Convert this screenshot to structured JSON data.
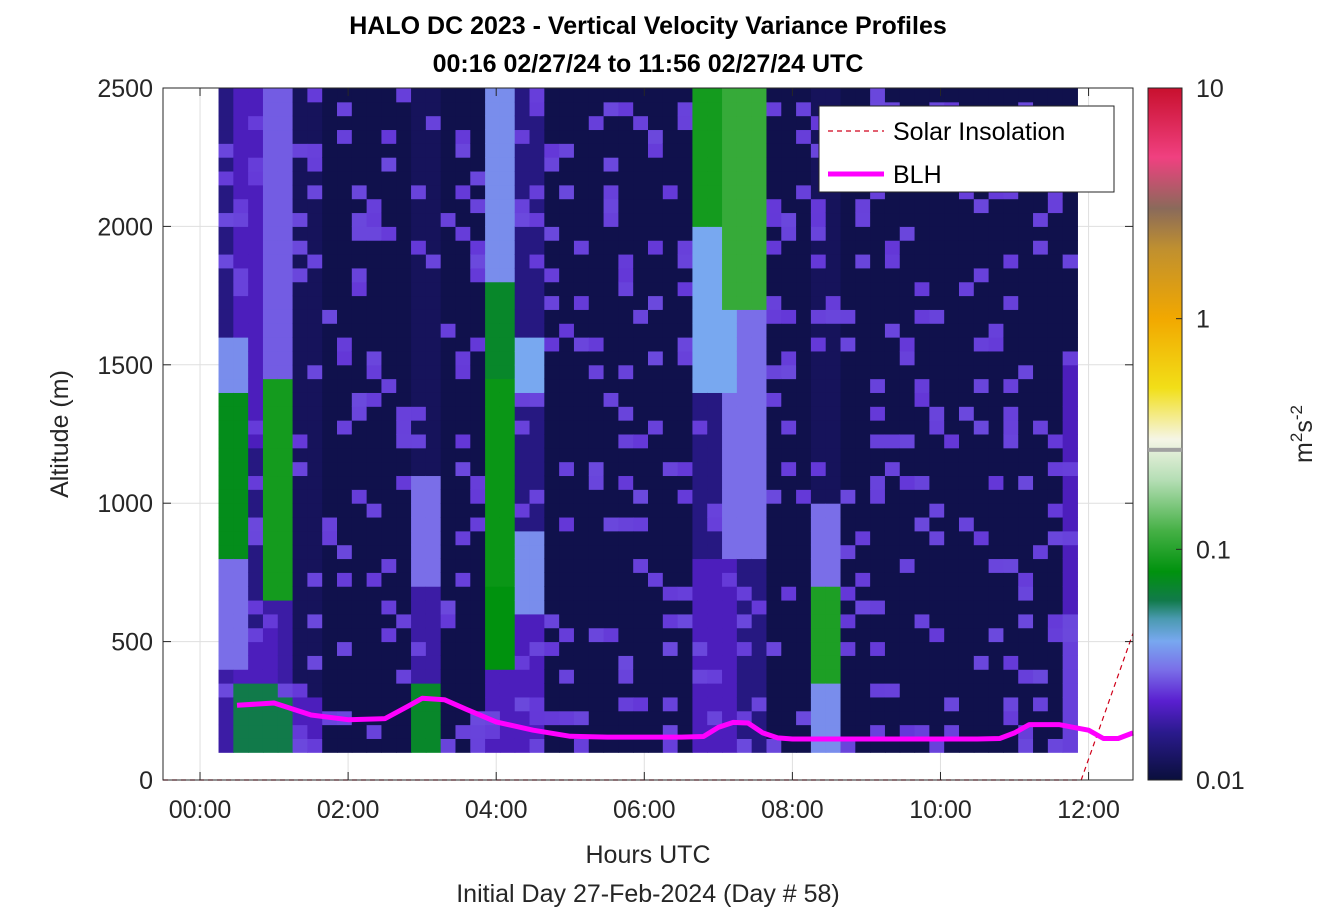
{
  "chart_data": {
    "type": "heatmap",
    "title": "HALO DC 2023 - Vertical Velocity Variance Profiles",
    "subtitle": "00:16 02/27/24 to 11:56 02/27/24  UTC",
    "xlabel": "Hours UTC",
    "xlabel2": "Initial Day 27-Feb-2024 (Day # 58)",
    "ylabel": "Altitude (m)",
    "x_unit": "hours UTC",
    "xlim": [
      -0.5,
      12.6
    ],
    "ylim": [
      0,
      2500
    ],
    "x_ticks": [
      0,
      2,
      4,
      6,
      8,
      10,
      12
    ],
    "x_tick_labels": [
      "00:00",
      "02:00",
      "04:00",
      "06:00",
      "08:00",
      "10:00",
      "12:00"
    ],
    "y_ticks": [
      0,
      500,
      1000,
      1500,
      2000,
      2500
    ],
    "y_tick_labels": [
      "0",
      "500",
      "1000",
      "1500",
      "2000",
      "2500"
    ],
    "grid": true,
    "colorbar": {
      "scale": "log",
      "range": [
        0.01,
        10
      ],
      "ticks": [
        0.01,
        0.1,
        1,
        10
      ],
      "tick_labels": [
        "0.01",
        "0.1",
        "1",
        "10"
      ],
      "label_base": "m",
      "label_sup1": "2",
      "label_mid": "s",
      "label_sup2": "-2",
      "stops": [
        {
          "v": 0.01,
          "c": "#0a0f3c"
        },
        {
          "v": 0.016,
          "c": "#2a1a8c"
        },
        {
          "v": 0.022,
          "c": "#5a1fd0"
        },
        {
          "v": 0.03,
          "c": "#7a6ee8"
        },
        {
          "v": 0.04,
          "c": "#78a8f0"
        },
        {
          "v": 0.05,
          "c": "#4a9ab0"
        },
        {
          "v": 0.06,
          "c": "#117a4a"
        },
        {
          "v": 0.08,
          "c": "#00920e"
        },
        {
          "v": 0.12,
          "c": "#45b045"
        },
        {
          "v": 0.2,
          "c": "#b5deb5"
        },
        {
          "v": 0.3,
          "c": "#f5f5e6"
        },
        {
          "v": 0.5,
          "c": "#f2df18"
        },
        {
          "v": 1.0,
          "c": "#f2a800"
        },
        {
          "v": 2.0,
          "c": "#c0902f"
        },
        {
          "v": 3.0,
          "c": "#8a6a5a"
        },
        {
          "v": 5.0,
          "c": "#f04080"
        },
        {
          "v": 10.0,
          "c": "#c8102e"
        }
      ],
      "marker_value": 0.27
    },
    "heatmap": {
      "x_start": 0.25,
      "dx": 0.2,
      "y_start": 100,
      "dy": 50,
      "rows_note": "rows are altitude bins from 100 m upward; values are variance in m2 s-2",
      "columns": [
        {
          "x": 0.35,
          "blocks": [
            [
              100,
              400,
              0.018
            ],
            [
              400,
              800,
              0.03
            ],
            [
              800,
              1400,
              0.075
            ],
            [
              1400,
              1600,
              0.035
            ],
            [
              1600,
              2500,
              0.015
            ]
          ]
        },
        {
          "x": 0.75,
          "blocks": [
            [
              100,
              350,
              0.06
            ],
            [
              350,
              550,
              0.02
            ],
            [
              550,
              1200,
              0.015
            ],
            [
              1200,
              2500,
              0.02
            ]
          ]
        },
        {
          "x": 1.05,
          "blocks": [
            [
              100,
              300,
              0.06
            ],
            [
              300,
              650,
              0.018
            ],
            [
              650,
              1450,
              0.09
            ],
            [
              1450,
              2500,
              0.028
            ]
          ]
        },
        {
          "x": 1.45,
          "blocks": [
            [
              100,
              300,
              0.02
            ],
            [
              300,
              2500,
              0.012
            ]
          ]
        },
        {
          "x": 3.05,
          "blocks": [
            [
              100,
              350,
              0.07
            ],
            [
              350,
              700,
              0.018
            ],
            [
              700,
              1100,
              0.03
            ],
            [
              1100,
              2500,
              0.012
            ]
          ]
        },
        {
          "x": 4.05,
          "blocks": [
            [
              100,
              400,
              0.02
            ],
            [
              400,
              700,
              0.08
            ],
            [
              700,
              1450,
              0.085
            ],
            [
              1450,
              1800,
              0.07
            ],
            [
              1800,
              2500,
              0.035
            ]
          ]
        },
        {
          "x": 4.45,
          "blocks": [
            [
              100,
              600,
              0.02
            ],
            [
              600,
              900,
              0.035
            ],
            [
              900,
              1400,
              0.015
            ],
            [
              1400,
              1600,
              0.04
            ],
            [
              1600,
              2500,
              0.015
            ]
          ]
        },
        {
          "x": 6.95,
          "blocks": [
            [
              100,
              800,
              0.02
            ],
            [
              800,
              1400,
              0.015
            ],
            [
              1400,
              2000,
              0.04
            ],
            [
              2000,
              2500,
              0.09
            ]
          ]
        },
        {
          "x": 7.35,
          "blocks": [
            [
              100,
              800,
              0.015
            ],
            [
              800,
              1700,
              0.03
            ],
            [
              1700,
              2500,
              0.11
            ]
          ]
        },
        {
          "x": 8.45,
          "blocks": [
            [
              100,
              350,
              0.035
            ],
            [
              350,
              700,
              0.095
            ],
            [
              700,
              1000,
              0.03
            ],
            [
              1000,
              2500,
              0.012
            ]
          ]
        },
        {
          "x": 11.85,
          "blocks": [
            [
              100,
              500,
              0.025
            ],
            [
              500,
              1500,
              0.02
            ],
            [
              1500,
              2500,
              0.011
            ]
          ]
        }
      ]
    },
    "series": [
      {
        "name": "Solar Insolation",
        "style": "dashed",
        "color": "#d0021b",
        "x": [
          -0.5,
          11.9,
          12.6
        ],
        "y": [
          0,
          0,
          530
        ]
      },
      {
        "name": "BLH",
        "style": "solid",
        "color": "#ff00ff",
        "x": [
          0.5,
          1.0,
          1.5,
          2.0,
          2.5,
          2.8,
          3.0,
          3.3,
          3.6,
          4.0,
          4.5,
          5.0,
          5.5,
          6.0,
          6.5,
          6.8,
          7.0,
          7.2,
          7.4,
          7.6,
          7.8,
          8.0,
          8.5,
          9.0,
          9.5,
          10.0,
          10.5,
          10.8,
          11.0,
          11.2,
          11.6,
          11.8,
          12.0,
          12.2,
          12.4,
          12.6
        ],
        "y": [
          270,
          278,
          235,
          218,
          222,
          265,
          295,
          290,
          255,
          210,
          180,
          158,
          155,
          155,
          155,
          157,
          190,
          208,
          206,
          170,
          152,
          148,
          148,
          148,
          148,
          148,
          148,
          150,
          170,
          200,
          200,
          190,
          180,
          150,
          150,
          170
        ]
      }
    ],
    "legend": {
      "placement": "top-right",
      "entries": [
        "Solar Insolation",
        "BLH"
      ]
    }
  }
}
